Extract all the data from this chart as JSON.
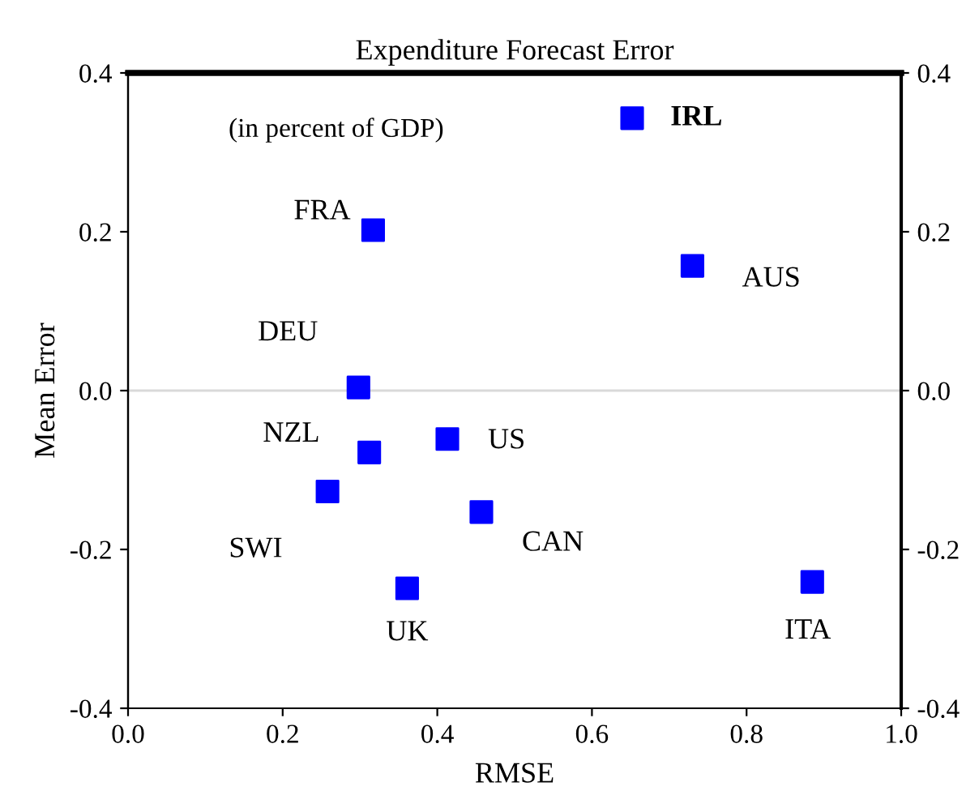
{
  "chart_data": {
    "type": "scatter",
    "title": "Expenditure Forecast Error",
    "xlabel": "RMSE",
    "ylabel": "Mean Error",
    "x": [
      0.652,
      0.317,
      0.73,
      0.298,
      0.312,
      0.413,
      0.258,
      0.457,
      0.361,
      0.885
    ],
    "series": [
      {
        "color": "#0000ff",
        "values": [
          0.343,
          0.202,
          0.157,
          0.004,
          -0.078,
          -0.061,
          -0.127,
          -0.153,
          -0.249,
          -0.241
        ]
      }
    ],
    "marker": "square",
    "annotations": [
      "(in percent of GDP)",
      {
        "text": "IRL",
        "x": 0.652,
        "y": 0.343
      },
      {
        "text": "FRA",
        "x": 0.317,
        "y": 0.202
      },
      {
        "text": "AUS",
        "x": 0.73,
        "y": 0.157
      },
      {
        "text": "DEU",
        "x": 0.298,
        "y": 0.004
      },
      {
        "text": "NZL",
        "x": 0.312,
        "y": -0.078
      },
      {
        "text": "US",
        "x": 0.413,
        "y": -0.061
      },
      {
        "text": "SWI",
        "x": 0.258,
        "y": -0.127
      },
      {
        "text": "CAN",
        "x": 0.457,
        "y": -0.153
      },
      {
        "text": "UK",
        "x": 0.361,
        "y": -0.249
      },
      {
        "text": "ITA",
        "x": 0.885,
        "y": -0.241
      }
    ],
    "xlim": [
      0,
      1
    ],
    "xticks": [
      {
        "value": 0,
        "label": "0.0"
      },
      {
        "value": 0.2,
        "label": "0.2"
      },
      {
        "value": 0.4,
        "label": "0.4"
      },
      {
        "value": 0.6,
        "label": "0.6"
      },
      {
        "value": 0.8,
        "label": "0.8"
      },
      {
        "value": 1,
        "label": "1.0"
      }
    ],
    "ylim": [
      -0.4,
      0.4
    ],
    "yticks": [
      {
        "value": -0.4,
        "label": "-0.4"
      },
      {
        "value": -0.2,
        "label": "-0.2"
      },
      {
        "value": 0,
        "label": "0.0"
      },
      {
        "value": 0.2,
        "label": "0.2"
      },
      {
        "value": 0.4,
        "label": "0.4"
      }
    ],
    "y2lim": [
      -0.4,
      0.4
    ],
    "y2ticks": [
      {
        "value": -0.4,
        "label": "-0.4"
      },
      {
        "value": -0.2,
        "label": "-0.2"
      },
      {
        "value": 0,
        "label": "0.0"
      },
      {
        "value": 0.2,
        "label": "0.2"
      },
      {
        "value": 0.4,
        "label": "0.4"
      }
    ],
    "ref_lines": [
      {
        "axis": "y",
        "value": 0,
        "color": "#d9d9d9"
      }
    ],
    "grid": false,
    "legend": false
  }
}
